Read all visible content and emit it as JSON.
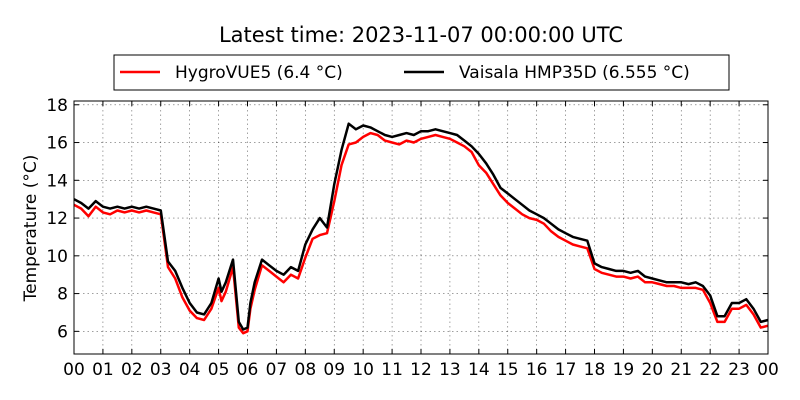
{
  "chart_data": {
    "type": "line",
    "title": "Latest time: 2023-11-07 00:00:00 UTC",
    "xlabel": "",
    "ylabel": "Temperature (°C)",
    "xlim": [
      0,
      24
    ],
    "ylim": [
      4.8,
      18.2
    ],
    "x_tick_labels": [
      "00",
      "01",
      "02",
      "03",
      "04",
      "05",
      "06",
      "07",
      "08",
      "09",
      "10",
      "11",
      "12",
      "13",
      "14",
      "15",
      "16",
      "17",
      "18",
      "19",
      "20",
      "21",
      "22",
      "23",
      "00"
    ],
    "y_ticks": [
      6,
      8,
      10,
      12,
      14,
      16,
      18
    ],
    "grid": true,
    "legend_placement": "top-center",
    "x": [
      0,
      0.25,
      0.5,
      0.75,
      1,
      1.25,
      1.5,
      1.75,
      2,
      2.25,
      2.5,
      2.75,
      3,
      3.25,
      3.5,
      3.75,
      4,
      4.25,
      4.5,
      4.75,
      5,
      5.1,
      5.25,
      5.5,
      5.7,
      5.85,
      6,
      6.1,
      6.25,
      6.5,
      6.75,
      7,
      7.25,
      7.5,
      7.75,
      8,
      8.25,
      8.5,
      8.75,
      9,
      9.25,
      9.5,
      9.75,
      10,
      10.25,
      10.5,
      10.75,
      11,
      11.25,
      11.5,
      11.75,
      12,
      12.25,
      12.5,
      12.75,
      13,
      13.25,
      13.5,
      13.75,
      14,
      14.25,
      14.5,
      14.75,
      15,
      15.25,
      15.5,
      15.75,
      16,
      16.25,
      16.5,
      16.75,
      17,
      17.25,
      17.5,
      17.75,
      18,
      18.25,
      18.5,
      18.75,
      19,
      19.25,
      19.5,
      19.75,
      20,
      20.25,
      20.5,
      20.75,
      21,
      21.25,
      21.5,
      21.75,
      22,
      22.25,
      22.5,
      22.75,
      23,
      23.25,
      23.5,
      23.75,
      24
    ],
    "series": [
      {
        "name": "HygroVUE5 (6.4 °C)",
        "color": "#ff0000",
        "values": [
          12.7,
          12.5,
          12.1,
          12.6,
          12.3,
          12.2,
          12.4,
          12.3,
          12.4,
          12.3,
          12.4,
          12.3,
          12.2,
          9.4,
          8.8,
          7.8,
          7.1,
          6.7,
          6.6,
          7.2,
          8.3,
          7.6,
          8.1,
          9.4,
          6.2,
          5.9,
          6.0,
          7.2,
          8.2,
          9.5,
          9.2,
          8.9,
          8.6,
          9.0,
          8.8,
          9.9,
          10.9,
          11.1,
          11.2,
          12.9,
          14.8,
          15.9,
          16.0,
          16.3,
          16.5,
          16.4,
          16.1,
          16.0,
          15.9,
          16.1,
          16.0,
          16.2,
          16.3,
          16.4,
          16.3,
          16.2,
          16.0,
          15.8,
          15.5,
          14.8,
          14.4,
          13.8,
          13.2,
          12.8,
          12.5,
          12.2,
          12.0,
          11.9,
          11.7,
          11.3,
          11.0,
          10.8,
          10.6,
          10.5,
          10.4,
          9.3,
          9.1,
          9.0,
          8.9,
          8.9,
          8.8,
          8.9,
          8.6,
          8.6,
          8.5,
          8.4,
          8.4,
          8.3,
          8.3,
          8.3,
          8.2,
          7.5,
          6.5,
          6.5,
          7.2,
          7.2,
          7.4,
          6.9,
          6.2,
          6.3
        ]
      },
      {
        "name": "Vaisala HMP35D (6.555 °C)",
        "color": "#000000",
        "values": [
          13.0,
          12.8,
          12.5,
          12.9,
          12.6,
          12.5,
          12.6,
          12.5,
          12.6,
          12.5,
          12.6,
          12.5,
          12.4,
          9.7,
          9.2,
          8.3,
          7.5,
          7.0,
          6.9,
          7.5,
          8.8,
          8.1,
          8.6,
          9.8,
          6.5,
          6.1,
          6.2,
          7.5,
          8.6,
          9.8,
          9.5,
          9.2,
          9.0,
          9.4,
          9.2,
          10.6,
          11.4,
          12.0,
          11.5,
          13.8,
          15.6,
          17.0,
          16.7,
          16.9,
          16.8,
          16.6,
          16.4,
          16.3,
          16.4,
          16.5,
          16.4,
          16.6,
          16.6,
          16.7,
          16.6,
          16.5,
          16.4,
          16.1,
          15.8,
          15.4,
          14.9,
          14.3,
          13.6,
          13.3,
          13.0,
          12.7,
          12.4,
          12.2,
          12.0,
          11.7,
          11.4,
          11.2,
          11.0,
          10.9,
          10.8,
          9.6,
          9.4,
          9.3,
          9.2,
          9.2,
          9.1,
          9.2,
          8.9,
          8.8,
          8.7,
          8.6,
          8.6,
          8.6,
          8.5,
          8.6,
          8.4,
          7.9,
          6.8,
          6.8,
          7.5,
          7.5,
          7.7,
          7.2,
          6.5,
          6.6
        ]
      }
    ]
  }
}
